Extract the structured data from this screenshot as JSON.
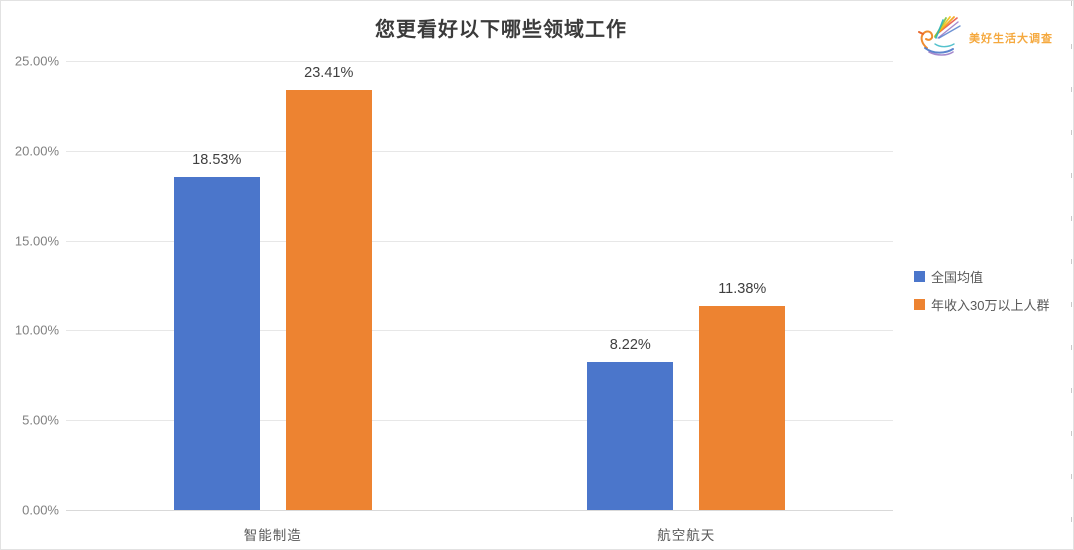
{
  "header": {
    "title": "您更看好以下哪些领域工作",
    "logo_text": "美好生活大调查",
    "logo_text_color": "#f5a93f"
  },
  "chart_data": {
    "type": "bar",
    "title": "您更看好以下哪些领域工作",
    "categories": [
      "智能制造",
      "航空航天"
    ],
    "series": [
      {
        "name": "全国均值",
        "color": "#4B76CB",
        "values": [
          18.53,
          8.22
        ],
        "labels": [
          "18.53%",
          "8.22%"
        ]
      },
      {
        "name": "年收入30万以上人群",
        "color": "#ED8331",
        "values": [
          23.41,
          11.38
        ],
        "labels": [
          "23.41%",
          "11.38%"
        ]
      }
    ],
    "xlabel": "",
    "ylabel": "",
    "ylim": [
      0,
      25
    ],
    "y_ticks": [
      "0.00%",
      "5.00%",
      "10.00%",
      "15.00%",
      "20.00%",
      "25.00%"
    ],
    "grid": true,
    "legend_position": "right"
  }
}
